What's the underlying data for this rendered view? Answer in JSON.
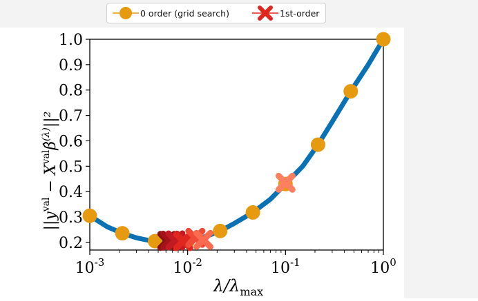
{
  "chart_data": {
    "type": "line",
    "xscale": "log",
    "xlim": [
      0.001,
      1.0
    ],
    "ylim": [
      0.17,
      1.0
    ],
    "xlabel": "λ/λ_max",
    "ylabel": "||y^val − X^val β̂^(λ)||²",
    "x_ticks": [
      0.001,
      0.01,
      0.1,
      1
    ],
    "x_tick_labels": [
      "10^-3",
      "10^-2",
      "10^-1",
      "10^0"
    ],
    "y_ticks": [
      0.2,
      0.3,
      0.4,
      0.5,
      0.6,
      0.7,
      0.8,
      0.9,
      1.0
    ],
    "y_tick_labels": [
      "0.2",
      "0.3",
      "0.4",
      "0.5",
      "0.6",
      "0.7",
      "0.8",
      "0.9",
      "1.0"
    ],
    "legend_position": "top-center",
    "grid": false,
    "colors": {
      "curve": "#0a72b4",
      "grid_point": "#e59a10",
      "first_order": [
        "#8a0f12",
        "#a3141a",
        "#c21a22",
        "#e0271f",
        "#f04a38",
        "#fa6c50",
        "#ff8060"
      ]
    },
    "series": [
      {
        "name": "0 order (grid search)",
        "marker": "circle",
        "x": [
          0.001,
          0.00215,
          0.00464,
          0.01,
          0.0215,
          0.0464,
          0.1,
          0.215,
          0.464,
          1.0
        ],
        "y": [
          0.305,
          0.236,
          0.205,
          0.205,
          0.245,
          0.318,
          0.43,
          0.585,
          0.795,
          1.0
        ]
      },
      {
        "name": "1st-order",
        "marker": "x",
        "x": [
          0.1,
          0.0145,
          0.012,
          0.009,
          0.0075,
          0.0066,
          0.0062
        ],
        "y": [
          0.435,
          0.21,
          0.218,
          0.205,
          0.208,
          0.207,
          0.206
        ]
      }
    ],
    "curve": {
      "x": [
        0.001,
        0.0015,
        0.00215,
        0.003,
        0.004,
        0.00464,
        0.006,
        0.008,
        0.01,
        0.013,
        0.0165,
        0.0215,
        0.03,
        0.0464,
        0.07,
        0.1,
        0.15,
        0.215,
        0.3,
        0.464,
        0.7,
        1.0
      ],
      "y": [
        0.305,
        0.262,
        0.236,
        0.218,
        0.208,
        0.205,
        0.202,
        0.201,
        0.205,
        0.215,
        0.228,
        0.245,
        0.275,
        0.318,
        0.37,
        0.43,
        0.5,
        0.585,
        0.675,
        0.795,
        0.9,
        1.0
      ]
    }
  }
}
